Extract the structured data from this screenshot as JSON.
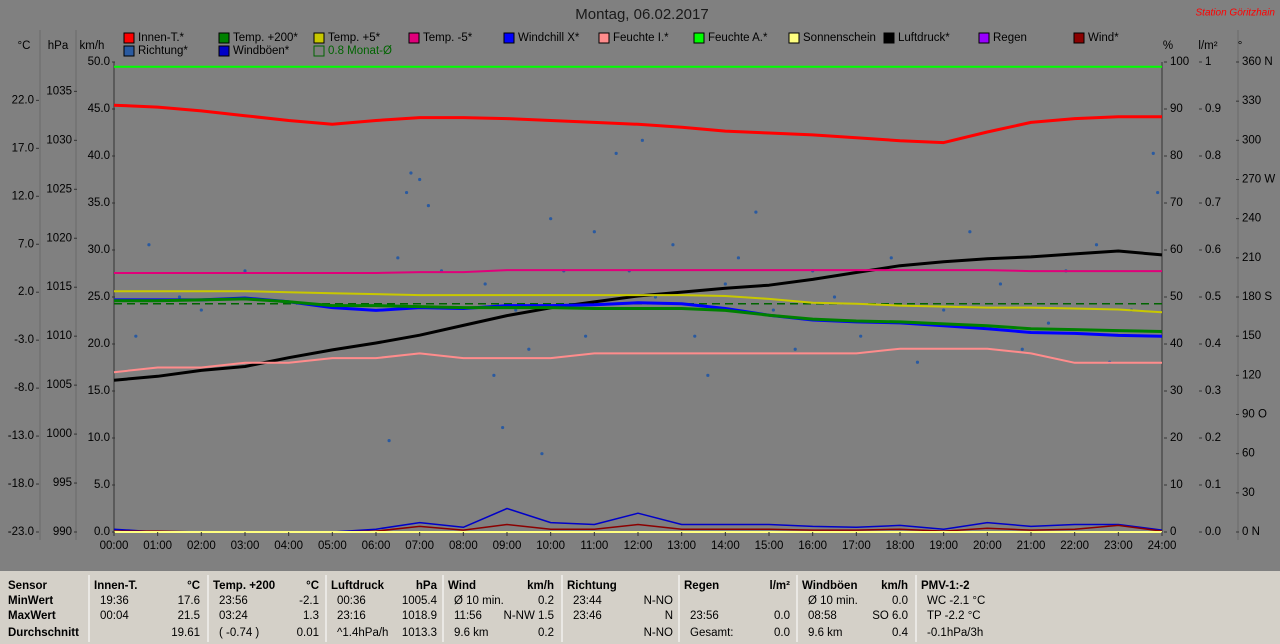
{
  "chart_data": {
    "type": "line",
    "title": "Montag, 06.02.2017",
    "subtitle": "Station Göritzhain",
    "axes": {
      "temp": {
        "label": "°C",
        "lim": [
          -23,
          26
        ],
        "ticks": [
          {
            "value": -23,
            "label": "-23.0"
          },
          {
            "value": -18,
            "label": "-18.0"
          },
          {
            "value": -13,
            "label": "-13.0"
          },
          {
            "value": -8,
            "label": "-8.0"
          },
          {
            "value": -3,
            "label": "-3.0"
          },
          {
            "value": 2,
            "label": "2.0"
          },
          {
            "value": 7,
            "label": "7.0"
          },
          {
            "value": 12,
            "label": "12.0"
          },
          {
            "value": 17,
            "label": "17.0"
          },
          {
            "value": 22,
            "label": "22.0"
          }
        ]
      },
      "pressure": {
        "label": "hPa",
        "lim": [
          990,
          1038
        ],
        "ticks": [
          990,
          995,
          1000,
          1005,
          1010,
          1015,
          1020,
          1025,
          1030,
          1035
        ]
      },
      "speed": {
        "label": "km/h",
        "lim": [
          0,
          50
        ],
        "ticks": [
          {
            "value": 0,
            "label": "0.0"
          },
          {
            "value": 5,
            "label": "5.0"
          },
          {
            "value": 10,
            "label": "10.0"
          },
          {
            "value": 15,
            "label": "15.0"
          },
          {
            "value": 20,
            "label": "20.0"
          },
          {
            "value": 25,
            "label": "25.0"
          },
          {
            "value": 30,
            "label": "30.0"
          },
          {
            "value": 35,
            "label": "35.0"
          },
          {
            "value": 40,
            "label": "40.0"
          },
          {
            "value": 45,
            "label": "45.0"
          },
          {
            "value": 50,
            "label": "50.0"
          }
        ]
      },
      "percent": {
        "label": "%",
        "lim": [
          0,
          100
        ],
        "ticks": [
          0,
          10,
          20,
          30,
          40,
          50,
          60,
          70,
          80,
          90,
          100
        ]
      },
      "rain": {
        "label": "l/m²",
        "lim": [
          0,
          1
        ],
        "ticks": [
          {
            "value": 0,
            "label": "0.0"
          },
          0.1,
          0.2,
          0.3,
          0.4,
          0.5,
          0.6,
          0.7,
          0.8,
          0.9,
          1
        ]
      },
      "direction": {
        "label": "°",
        "lim": [
          0,
          360
        ],
        "ticks": [
          {
            "value": 0,
            "label": "0 N"
          },
          30,
          60,
          {
            "value": 90,
            "label": "90 O"
          },
          120,
          150,
          {
            "value": 180,
            "label": "180 S"
          },
          210,
          240,
          {
            "value": 270,
            "label": "270 W"
          },
          300,
          330,
          {
            "value": 360,
            "label": "360 N"
          }
        ]
      }
    },
    "xlim": [
      0,
      24
    ],
    "xticks": [
      {
        "value": 0,
        "label": "00:00"
      },
      {
        "value": 1,
        "label": "01:00"
      },
      {
        "value": 2,
        "label": "02:00"
      },
      {
        "value": 3,
        "label": "03:00"
      },
      {
        "value": 4,
        "label": "04:00"
      },
      {
        "value": 5,
        "label": "05:00"
      },
      {
        "value": 6,
        "label": "06:00"
      },
      {
        "value": 7,
        "label": "07:00"
      },
      {
        "value": 8,
        "label": "08:00"
      },
      {
        "value": 9,
        "label": "09:00"
      },
      {
        "value": 10,
        "label": "10:00"
      },
      {
        "value": 11,
        "label": "11:00"
      },
      {
        "value": 12,
        "label": "12:00"
      },
      {
        "value": 13,
        "label": "13:00"
      },
      {
        "value": 14,
        "label": "14:00"
      },
      {
        "value": 15,
        "label": "15:00"
      },
      {
        "value": 16,
        "label": "16:00"
      },
      {
        "value": 17,
        "label": "17:00"
      },
      {
        "value": 18,
        "label": "18:00"
      },
      {
        "value": 19,
        "label": "19:00"
      },
      {
        "value": 20,
        "label": "20:00"
      },
      {
        "value": 21,
        "label": "21:00"
      },
      {
        "value": 22,
        "label": "22:00"
      },
      {
        "value": 23,
        "label": "23:00"
      },
      {
        "value": 24,
        "label": "24:00"
      }
    ],
    "x": [
      0,
      1,
      2,
      3,
      4,
      5,
      6,
      7,
      8,
      9,
      10,
      11,
      12,
      13,
      14,
      15,
      16,
      17,
      18,
      19,
      20,
      21,
      22,
      23,
      24
    ],
    "series": [
      {
        "name": "Innen-T.*",
        "color": "#ff0000",
        "axis": "temp",
        "width": 3,
        "values": [
          21.5,
          21.3,
          20.9,
          20.4,
          19.9,
          19.5,
          19.9,
          20.2,
          20.2,
          20.1,
          19.9,
          19.7,
          19.5,
          19.2,
          18.8,
          18.6,
          18.4,
          18.1,
          17.8,
          17.6,
          18.7,
          19.7,
          20.1,
          20.3,
          20.3
        ]
      },
      {
        "name": "Temp. +200*",
        "color": "#008000",
        "axis": "temp",
        "width": 3,
        "values": [
          1.1,
          1.1,
          1.2,
          1.3,
          1.0,
          0.6,
          0.6,
          0.5,
          0.4,
          0.4,
          0.4,
          0.3,
          0.3,
          0.3,
          0.1,
          -0.4,
          -0.8,
          -1.0,
          -1.1,
          -1.3,
          -1.5,
          -1.8,
          -1.9,
          -2.0,
          -2.1
        ]
      },
      {
        "name": "Temp. +5*",
        "color": "#c8c800",
        "axis": "temp",
        "width": 2,
        "values": [
          2.1,
          2.1,
          2.1,
          2.1,
          2.0,
          1.9,
          1.8,
          1.7,
          1.7,
          1.7,
          1.7,
          1.7,
          1.7,
          1.7,
          1.6,
          1.3,
          0.9,
          0.8,
          0.6,
          0.5,
          0.4,
          0.4,
          0.3,
          0.2,
          -0.1
        ]
      },
      {
        "name": "Temp. -5*",
        "color": "#e0007a",
        "axis": "temp",
        "width": 2,
        "values": [
          4.0,
          4.0,
          4.0,
          4.0,
          4.0,
          4.0,
          4.0,
          4.1,
          4.1,
          4.3,
          4.3,
          4.3,
          4.3,
          4.3,
          4.3,
          4.3,
          4.3,
          4.3,
          4.3,
          4.3,
          4.3,
          4.2,
          4.2,
          4.2,
          4.2
        ]
      },
      {
        "name": "Windchill X*",
        "color": "#0000ff",
        "axis": "temp",
        "width": 3,
        "values": [
          1.2,
          1.2,
          1.2,
          1.4,
          1.0,
          0.4,
          0.1,
          0.4,
          0.3,
          0.6,
          0.6,
          0.7,
          0.9,
          0.8,
          0.3,
          -0.4,
          -0.9,
          -1.1,
          -1.2,
          -1.5,
          -1.8,
          -2.2,
          -2.3,
          -2.5,
          -2.6
        ]
      },
      {
        "name": "Feuchte I.*",
        "color": "#ff8c8c",
        "axis": "percent",
        "width": 2,
        "values": [
          34,
          35,
          35,
          36,
          36,
          37,
          37,
          38,
          37,
          37,
          37,
          38,
          38,
          38,
          38,
          38,
          38,
          38,
          39,
          39,
          39,
          38,
          36,
          36,
          36
        ]
      },
      {
        "name": "Feuchte A.*",
        "color": "#00ff00",
        "axis": "percent",
        "width": 2,
        "values": [
          99,
          99,
          99,
          99,
          99,
          99,
          99,
          99,
          99,
          99,
          99,
          99,
          99,
          99,
          99,
          99,
          99,
          99,
          99,
          99,
          99,
          99,
          99,
          99,
          99
        ]
      },
      {
        "name": "Sonnenschein",
        "color": "#ffff80",
        "axis": "speed",
        "width": 2,
        "values": [
          0,
          0,
          0,
          0,
          0,
          0,
          0,
          0,
          0,
          0,
          0,
          0,
          0,
          0,
          0,
          0,
          0,
          0,
          0,
          0,
          0,
          0,
          0,
          0,
          0
        ]
      },
      {
        "name": "Luftdruck*",
        "color": "#000000",
        "axis": "pressure",
        "width": 3,
        "values": [
          1005.5,
          1005.9,
          1006.5,
          1006.9,
          1007.8,
          1008.6,
          1009.3,
          1010.1,
          1011.1,
          1012.1,
          1012.9,
          1013.5,
          1014.1,
          1014.5,
          1014.9,
          1015.2,
          1015.8,
          1016.5,
          1017.2,
          1017.6,
          1017.9,
          1018.1,
          1018.4,
          1018.7,
          1018.3
        ]
      },
      {
        "name": "Regen",
        "color": "#9900ff",
        "axis": "rain",
        "width": 2,
        "values": [
          0,
          0,
          0,
          0,
          0,
          0,
          0,
          0,
          0,
          0,
          0,
          0,
          0,
          0,
          0,
          0,
          0,
          0,
          0,
          0,
          0,
          0,
          0,
          0,
          0
        ]
      },
      {
        "name": "Wind*",
        "color": "#8b0000",
        "axis": "speed",
        "width": 1.5,
        "values": [
          0.1,
          0.1,
          0,
          0,
          0,
          0,
          0.1,
          0.6,
          0.2,
          0.8,
          0.3,
          0.3,
          0.8,
          0.3,
          0.3,
          0.3,
          0.2,
          0.2,
          0.3,
          0.1,
          0.4,
          0.2,
          0.3,
          0.7,
          0.1
        ]
      },
      {
        "name": "Richtung*",
        "color": "#2a5aa0",
        "axis": "direction",
        "dots": true,
        "x": [
          0.5,
          0.8,
          1.5,
          2.0,
          3.0,
          6.3,
          6.5,
          6.7,
          6.8,
          7.0,
          7.2,
          7.5,
          8.5,
          8.7,
          8.9,
          9.2,
          9.5,
          9.8,
          10.0,
          10.3,
          10.8,
          11.0,
          11.5,
          11.8,
          12.1,
          12.4,
          12.8,
          13.3,
          13.6,
          14.0,
          14.3,
          14.7,
          15.1,
          15.6,
          16.0,
          16.5,
          17.1,
          17.8,
          18.4,
          19.0,
          19.6,
          20.3,
          20.8,
          21.4,
          21.8,
          22.5,
          22.8,
          23.3,
          23.8,
          23.9
        ],
        "values": [
          150,
          220,
          180,
          170,
          200,
          70,
          210,
          260,
          275,
          270,
          250,
          200,
          190,
          120,
          80,
          170,
          140,
          60,
          240,
          200,
          150,
          230,
          290,
          200,
          300,
          180,
          220,
          150,
          120,
          190,
          210,
          245,
          170,
          140,
          200,
          180,
          150,
          210,
          130,
          170,
          230,
          190,
          140,
          160,
          200,
          220,
          130,
          170,
          290,
          260
        ]
      },
      {
        "name": "Windböen*",
        "color": "#0000c8",
        "axis": "speed",
        "width": 1.5,
        "values": [
          0.3,
          0,
          0,
          0,
          0,
          0,
          0.3,
          1.0,
          0.5,
          2.5,
          1.0,
          0.8,
          2.0,
          0.8,
          0.8,
          0.8,
          0.6,
          0.5,
          0.7,
          0.3,
          1.0,
          0.6,
          0.8,
          0.8,
          0.2
        ]
      }
    ],
    "monthly_average": {
      "label": "0.8 Monat-Ø",
      "value": 0.8,
      "axis": "temp",
      "color": "#006400"
    }
  },
  "summary_table": {
    "header": "Sensor",
    "columns": [
      {
        "name": "Innen-T.",
        "unit": "°C"
      },
      {
        "name": "Temp. +200",
        "unit": "°C"
      },
      {
        "name": "Luftdruck",
        "unit": "hPa"
      },
      {
        "name": "Wind",
        "unit": "km/h"
      },
      {
        "name": "Richtung",
        "unit": null
      },
      {
        "name": "Regen",
        "unit": "l/m²"
      },
      {
        "name": "Windböen",
        "unit": "km/h"
      },
      {
        "name": "PMV-1:-2",
        "unit": null
      }
    ],
    "rows": [
      {
        "label": "MinWert",
        "cells": [
          [
            "19:36",
            "17.6"
          ],
          [
            "23:56",
            "-2.1"
          ],
          [
            "00:36",
            "1005.4"
          ],
          [
            "Ø 10 min.",
            "0.2"
          ],
          [
            "23:44",
            "N-NO"
          ],
          [
            null,
            null
          ],
          [
            "Ø 10 min.",
            "0.0"
          ],
          [
            "WC -2.1 °C",
            null
          ]
        ]
      },
      {
        "label": "MaxWert",
        "cells": [
          [
            "00:04",
            "21.5"
          ],
          [
            "03:24",
            "1.3"
          ],
          [
            "23:16",
            "1018.9"
          ],
          [
            "11:56",
            "N-NW 1.5"
          ],
          [
            "23:46",
            "N"
          ],
          [
            "23:56",
            "0.0"
          ],
          [
            "08:58",
            "SO 6.0"
          ],
          [
            "TP -2.2 °C",
            null
          ]
        ]
      },
      {
        "label": "Durchschnitt",
        "cells": [
          [
            null,
            "19.61"
          ],
          [
            "( -0.74 )",
            "0.01"
          ],
          [
            "^1.4hPa/h",
            "1013.3"
          ],
          [
            "9.6 km",
            "0.2"
          ],
          [
            null,
            "N-NO"
          ],
          [
            "Gesamt:",
            "0.0"
          ],
          [
            "9.6 km",
            "0.4"
          ],
          [
            "-0.1hPa/3h",
            null
          ]
        ]
      }
    ]
  }
}
